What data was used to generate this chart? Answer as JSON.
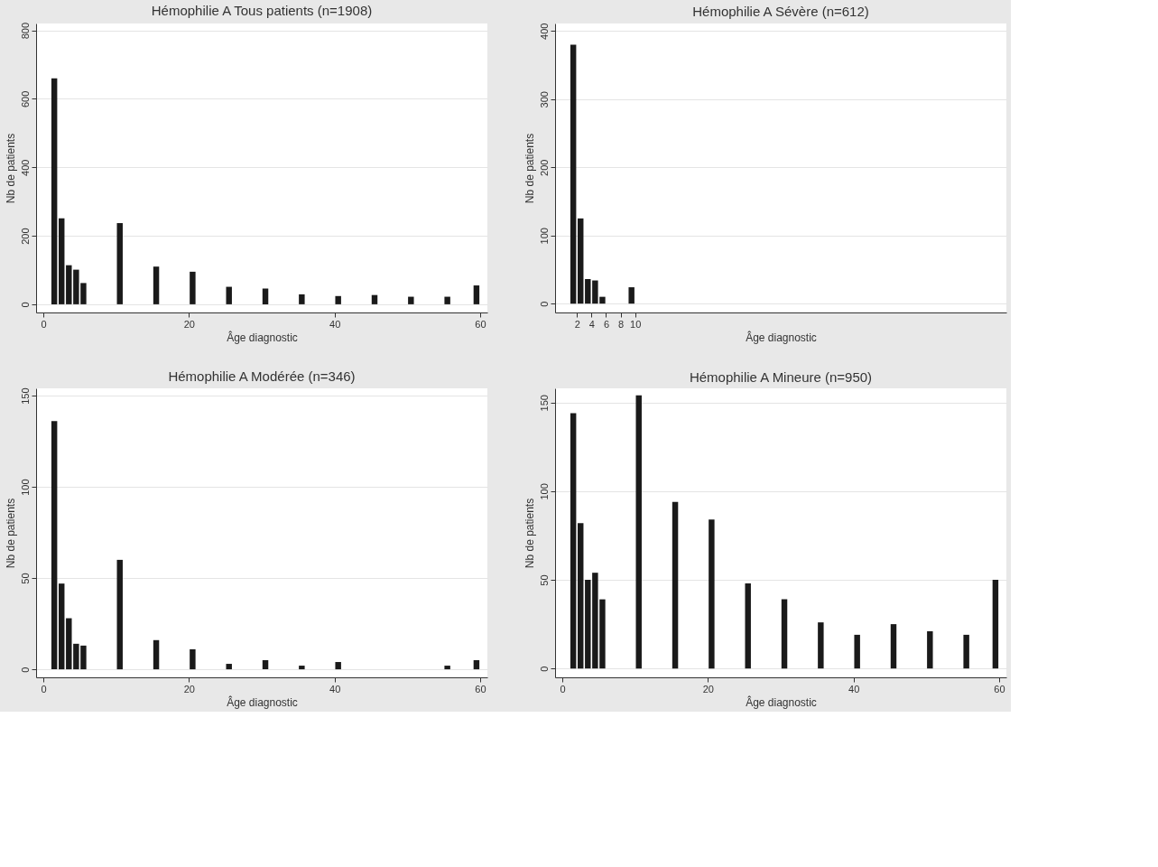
{
  "chart_data": [
    {
      "type": "bar",
      "title": "Hémophilie A Tous patients (n=1908)",
      "xlabel": "Âge diagnostic",
      "ylabel": "Nb de patients",
      "color": "#1a1a1a",
      "x": [
        1.5,
        2.5,
        3.5,
        4.5,
        5.5,
        10.5,
        15.5,
        20.5,
        25.5,
        30.5,
        35.5,
        40.5,
        45.5,
        50.5,
        55.5,
        59.5
      ],
      "values": [
        660,
        251,
        114,
        101,
        62,
        237,
        110,
        95,
        51,
        46,
        29,
        24,
        27,
        22,
        22,
        55
      ],
      "xlim": [
        -1,
        61
      ],
      "xticks": [
        0,
        20,
        40,
        60
      ],
      "ylim": [
        -24,
        820
      ],
      "yticks": [
        0,
        200,
        400,
        600,
        800
      ],
      "grid": "y"
    },
    {
      "type": "bar",
      "title": "Hémophilie A Sévère (n=612)",
      "xlabel": "Âge diagnostic",
      "ylabel": "Nb de patients",
      "color": "#1a1a1a",
      "x": [
        1.5,
        2.5,
        3.5,
        4.5,
        5.5,
        9.5
      ],
      "values": [
        380,
        125,
        36,
        34,
        10,
        24
      ],
      "xlim": [
        -1,
        61
      ],
      "xticks": [
        2,
        4,
        6,
        8,
        10
      ],
      "ylim": [
        -13,
        411
      ],
      "yticks": [
        0,
        100,
        200,
        300,
        400
      ],
      "grid": "y"
    },
    {
      "type": "bar",
      "title": "Hémophilie A Modérée (n=346)",
      "xlabel": "Âge diagnostic",
      "ylabel": "Nb de patients",
      "color": "#1a1a1a",
      "x": [
        1.5,
        2.5,
        3.5,
        4.5,
        5.5,
        10.5,
        15.5,
        20.5,
        25.5,
        30.5,
        35.5,
        40.5,
        45.5,
        50.5,
        55.5,
        59.5
      ],
      "values": [
        136,
        47,
        28,
        14,
        13,
        60,
        16,
        11,
        3,
        5,
        2,
        4,
        null,
        null,
        2,
        5
      ],
      "xlim": [
        -1,
        61
      ],
      "xticks": [
        0,
        20,
        40,
        60
      ],
      "ylim": [
        -4.4,
        154
      ],
      "yticks": [
        0,
        50,
        100,
        150
      ],
      "grid": "y"
    },
    {
      "type": "bar",
      "title": "Hémophilie A Mineure (n=950)",
      "xlabel": "Âge diagnostic",
      "ylabel": "Nb de patients",
      "color": "#1a1a1a",
      "x": [
        1.5,
        2.5,
        3.5,
        4.5,
        5.5,
        10.5,
        15.5,
        20.5,
        25.5,
        30.5,
        35.5,
        40.5,
        45.5,
        50.5,
        55.5,
        59.5
      ],
      "values": [
        144,
        82,
        50,
        54,
        39,
        154,
        94,
        84,
        48,
        39,
        26,
        19,
        25,
        21,
        19,
        50
      ],
      "xlim": [
        -1,
        61
      ],
      "xticks": [
        0,
        20,
        40,
        60
      ],
      "ylim": [
        -5,
        158
      ],
      "yticks": [
        0,
        50,
        100,
        150
      ],
      "grid": "y"
    }
  ]
}
